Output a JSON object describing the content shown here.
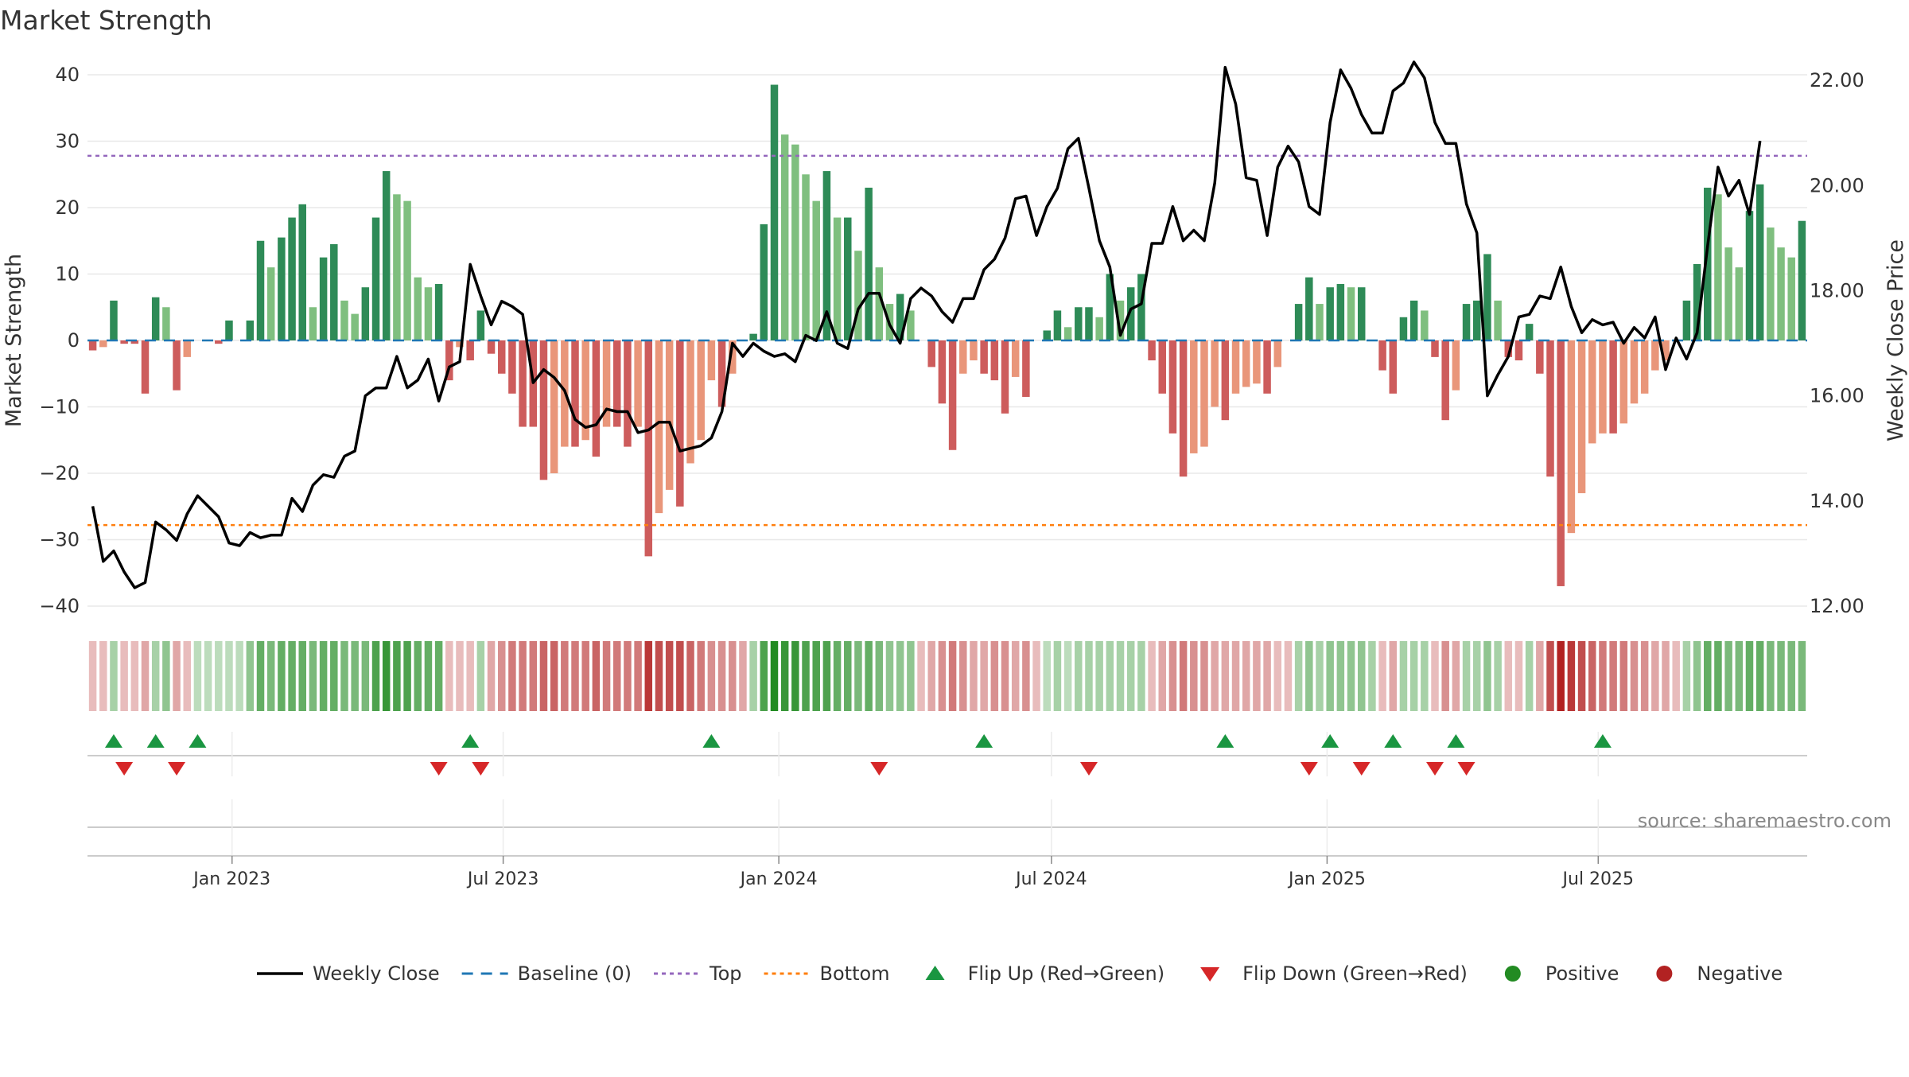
{
  "chart_data": {
    "type": "bar",
    "title": "Market Strength",
    "ylabel_left": "Market Strength",
    "ylabel_right": "Weekly Close Price",
    "source": "source: sharemaestro.com",
    "y_left": {
      "range": [
        -40,
        40
      ],
      "ticks": [
        "40",
        "30",
        "20",
        "10",
        "0",
        "−10",
        "−20",
        "−30",
        "−40"
      ],
      "tick_values": [
        40,
        30,
        20,
        10,
        0,
        -10,
        -20,
        -30,
        -40
      ]
    },
    "y_right": {
      "range": [
        12,
        23
      ],
      "ticks": [
        "22.00",
        "20.00",
        "18.00",
        "16.00",
        "14.00",
        "12.00"
      ],
      "tick_values": [
        22,
        20,
        18,
        16,
        14,
        12
      ]
    },
    "x_axis": {
      "start_date": "2022-09-30",
      "tick_labels": [
        "Jan 2023",
        "Jul 2023",
        "Jan 2024",
        "Jul 2024",
        "Jan 2025",
        "Jul 2025"
      ],
      "tick_dates": [
        "2023-01-01",
        "2023-07-01",
        "2024-01-01",
        "2024-07-01",
        "2025-01-01",
        "2025-07-01"
      ]
    },
    "grid": true,
    "top_level": 27.8,
    "bottom_level": -27.8,
    "baseline": 0,
    "colors": {
      "strong_green": "#2e8b57",
      "light_green": "#7fbf7f",
      "strong_red": "#cd5c5c",
      "light_red": "#e9967a",
      "close_line": "#000000",
      "baseline": "#1f77b4",
      "top": "#9467bd",
      "bottom": "#ff7f0e",
      "flip_up": "#1a9641",
      "flip_down": "#d62728",
      "positive": "#228b22",
      "negative": "#b22222"
    },
    "series": [
      {
        "name": "Market Strength",
        "values": [
          -1.5,
          -1,
          6,
          -0.5,
          -0.5,
          -8,
          6.5,
          5,
          -7.5,
          -2.5,
          0,
          0,
          -0.5,
          3,
          0,
          3,
          15,
          11,
          15.5,
          18.5,
          20.5,
          5,
          12.5,
          14.5,
          6,
          4,
          8,
          18.5,
          25.5,
          22,
          21,
          9.5,
          8,
          8.5,
          -6,
          -1,
          -3,
          4.5,
          -2,
          -5,
          -8,
          -13,
          -13,
          -21,
          -20,
          -16,
          -16,
          -15,
          -17.5,
          -13,
          -13,
          -16,
          -13,
          -32.5,
          -26,
          -22.5,
          -25,
          -18.5,
          -15,
          -6,
          -10,
          -5,
          0,
          1,
          17.5,
          38.5,
          31,
          29.5,
          25,
          21,
          25.5,
          18.5,
          18.5,
          13.5,
          23,
          11,
          5.5,
          7,
          4.5,
          0,
          -4,
          -9.5,
          -16.5,
          -5,
          -3,
          -5,
          -6,
          -11,
          -5.5,
          -8.5,
          0,
          1.5,
          4.5,
          2,
          5,
          5,
          3.5,
          10,
          6,
          8,
          10,
          -3,
          -8,
          -14,
          -20.5,
          -17,
          -16,
          -10,
          -12,
          -8,
          -7,
          -6.5,
          -8,
          -4,
          0,
          5.5,
          9.5,
          5.5,
          8,
          8.5,
          8,
          8,
          0,
          -4.5,
          -8,
          3.5,
          6,
          4.5,
          -2.5,
          -12,
          -7.5,
          5.5,
          6,
          13,
          6,
          -2.5,
          -3,
          2.5,
          -5,
          -20.5,
          -37,
          -29,
          -23,
          -15.5,
          -14,
          -14,
          -12.5,
          -9.5,
          -8,
          -4.5,
          -3,
          0,
          6,
          11.5,
          23,
          22,
          14,
          11,
          19.5,
          23.5,
          17,
          14,
          12.5,
          18
        ]
      },
      {
        "name": "Weekly Close",
        "values": [
          13.9,
          12.85,
          13.05,
          12.65,
          12.35,
          12.45,
          13.6,
          13.45,
          13.25,
          13.75,
          14.1,
          13.9,
          13.7,
          13.2,
          13.15,
          13.4,
          13.3,
          13.35,
          13.35,
          14.05,
          13.8,
          14.3,
          14.5,
          14.45,
          14.85,
          14.95,
          16.0,
          16.15,
          16.15,
          16.75,
          16.15,
          16.3,
          16.7,
          15.9,
          16.55,
          16.65,
          18.5,
          17.9,
          17.35,
          17.8,
          17.7,
          17.55,
          16.25,
          16.5,
          16.35,
          16.1,
          15.55,
          15.4,
          15.45,
          15.75,
          15.7,
          15.7,
          15.3,
          15.35,
          15.5,
          15.5,
          14.95,
          15.0,
          15.05,
          15.2,
          15.7,
          17.0,
          16.75,
          17.0,
          16.85,
          16.75,
          16.8,
          16.65,
          17.15,
          17.05,
          17.6,
          17.0,
          16.9,
          17.65,
          17.95,
          17.95,
          17.35,
          17.0,
          17.85,
          18.05,
          17.9,
          17.6,
          17.4,
          17.85,
          17.85,
          18.4,
          18.6,
          19.0,
          19.75,
          19.8,
          19.05,
          19.6,
          19.95,
          20.7,
          20.9,
          19.95,
          18.95,
          18.45,
          17.15,
          17.65,
          17.75,
          18.9,
          18.9,
          19.6,
          18.95,
          19.15,
          18.95,
          20.05,
          22.25,
          21.55,
          20.15,
          20.1,
          19.05,
          20.35,
          20.75,
          20.45,
          19.6,
          19.45,
          21.2,
          22.2,
          21.85,
          21.35,
          21.0,
          21.0,
          21.8,
          21.95,
          22.35,
          22.05,
          21.2,
          20.8,
          20.8,
          19.65,
          19.1,
          16.0,
          16.4,
          16.75,
          17.5,
          17.55,
          17.9,
          17.85,
          18.45,
          17.7,
          17.2,
          17.45,
          17.35,
          17.4,
          17.0,
          17.3,
          17.1,
          17.5,
          16.5,
          17.1,
          16.7,
          17.2,
          18.85,
          20.35,
          19.8,
          20.1,
          19.45,
          20.85
        ]
      }
    ],
    "strip_values": [
      -0.3,
      -0.3,
      0.4,
      -0.3,
      -0.3,
      -0.4,
      0.4,
      0.5,
      -0.4,
      -0.3,
      0.3,
      0.3,
      0.3,
      0.3,
      0.3,
      0.5,
      0.7,
      0.6,
      0.7,
      0.7,
      0.7,
      0.6,
      0.7,
      0.7,
      0.6,
      0.6,
      0.6,
      0.8,
      0.9,
      0.8,
      0.8,
      0.7,
      0.7,
      0.7,
      -0.3,
      -0.3,
      -0.3,
      0.4,
      -0.4,
      -0.5,
      -0.6,
      -0.6,
      -0.6,
      -0.7,
      -0.7,
      -0.6,
      -0.6,
      -0.6,
      -0.7,
      -0.6,
      -0.6,
      -0.6,
      -0.6,
      -0.9,
      -0.8,
      -0.8,
      -0.8,
      -0.7,
      -0.6,
      -0.5,
      -0.5,
      -0.5,
      -0.4,
      0.4,
      0.8,
      1.0,
      0.9,
      0.9,
      0.8,
      0.8,
      0.8,
      0.7,
      0.7,
      0.6,
      0.7,
      0.6,
      0.5,
      0.5,
      0.5,
      -0.3,
      -0.4,
      -0.5,
      -0.6,
      -0.5,
      -0.4,
      -0.4,
      -0.5,
      -0.5,
      -0.4,
      -0.5,
      -0.3,
      0.3,
      0.4,
      0.3,
      0.4,
      0.4,
      0.4,
      0.4,
      0.4,
      0.4,
      0.4,
      -0.3,
      -0.4,
      -0.5,
      -0.6,
      -0.5,
      -0.5,
      -0.4,
      -0.4,
      -0.4,
      -0.4,
      -0.4,
      -0.4,
      -0.3,
      -0.3,
      0.4,
      0.5,
      0.4,
      0.5,
      0.5,
      0.5,
      0.5,
      0.4,
      -0.3,
      -0.4,
      0.4,
      0.4,
      0.4,
      -0.3,
      -0.5,
      -0.4,
      0.4,
      0.4,
      0.5,
      0.4,
      -0.3,
      -0.3,
      0.4,
      -0.4,
      -0.8,
      -1.0,
      -0.9,
      -0.8,
      -0.7,
      -0.6,
      -0.6,
      -0.6,
      -0.5,
      -0.5,
      -0.4,
      -0.4,
      -0.3,
      0.4,
      0.5,
      0.7,
      0.7,
      0.6,
      0.6,
      0.7,
      0.7,
      0.6,
      0.6,
      0.6,
      0.6
    ],
    "flip_up_indices": [
      2,
      6,
      10,
      36,
      59,
      85,
      108,
      118,
      124,
      130,
      144
    ],
    "flip_down_indices": [
      3,
      8,
      33,
      37,
      75,
      95,
      116,
      121,
      128,
      131
    ],
    "legend": [
      {
        "label": "Weekly Close",
        "kind": "line"
      },
      {
        "label": "Baseline (0)",
        "kind": "dash"
      },
      {
        "label": "Top",
        "kind": "dotted-purple"
      },
      {
        "label": "Bottom",
        "kind": "dotted-orange"
      },
      {
        "label": "Flip Up (Red→Green)",
        "kind": "triangle-up"
      },
      {
        "label": "Flip Down (Green→Red)",
        "kind": "triangle-down"
      },
      {
        "label": "Positive",
        "kind": "dot-green"
      },
      {
        "label": "Negative",
        "kind": "dot-red"
      }
    ],
    "legend_placement": "bottom-center"
  }
}
